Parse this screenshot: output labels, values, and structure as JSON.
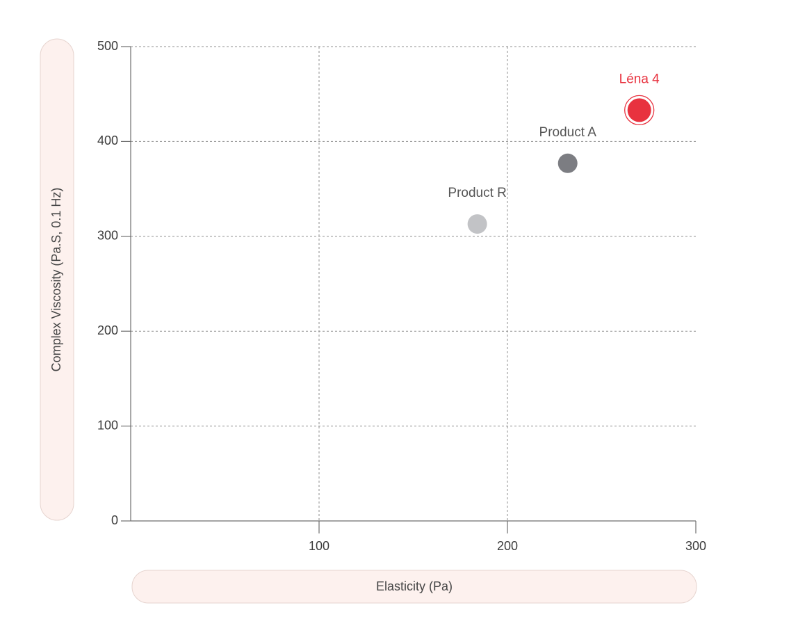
{
  "chart_data": {
    "type": "scatter",
    "title": "",
    "xlabel": "Elasticity (Pa)",
    "ylabel": "Complex Viscosity (Pa.S, 0.1 Hz)",
    "xlim": [
      0,
      300
    ],
    "ylim": [
      0,
      500
    ],
    "x_ticks": [
      100,
      200,
      300
    ],
    "y_ticks": [
      0,
      100,
      200,
      300,
      400,
      500
    ],
    "grid": true,
    "points": [
      {
        "label": "Product R",
        "x": 184,
        "y": 313,
        "color": "#c2c3c6",
        "label_color": "#555555",
        "ring": false
      },
      {
        "label": "Product A",
        "x": 232,
        "y": 377,
        "color": "#7c7d82",
        "label_color": "#555555",
        "ring": false
      },
      {
        "label": "Léna 4",
        "x": 270,
        "y": 433,
        "color": "#e8323f",
        "label_color": "#e8323f",
        "ring": true
      }
    ]
  },
  "colors": {
    "axis_pill_fill": "#fdf1ee",
    "axis_pill_border": "#e6d4cf",
    "grid": "#8f8f8f",
    "highlight": "#e8323f"
  }
}
